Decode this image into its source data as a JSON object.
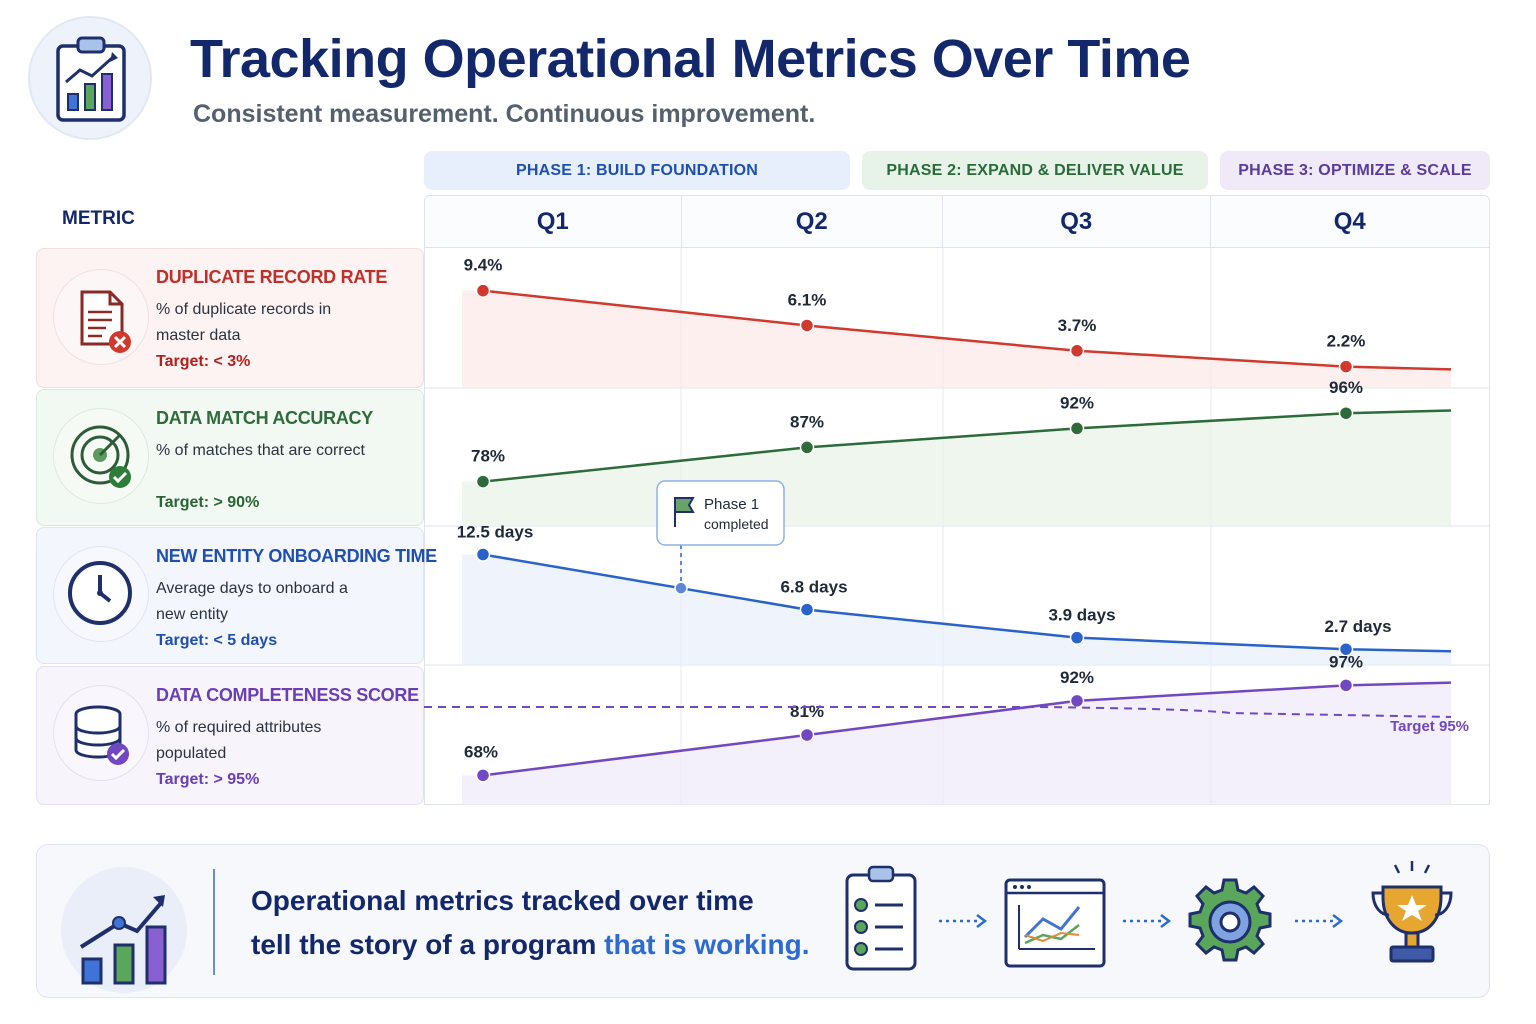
{
  "header": {
    "title": "Tracking Operational Metrics Over Time",
    "subtitle": "Consistent measurement. Continuous improvement.",
    "icon": "clipboard-chart-icon"
  },
  "phases": [
    {
      "label": "PHASE 1: BUILD FOUNDATION",
      "color": "#1f4fb0"
    },
    {
      "label": "PHASE 2: EXPAND & DELIVER VALUE",
      "color": "#2a6b3a"
    },
    {
      "label": "PHASE 3: OPTIMIZE & SCALE",
      "color": "#5a3c9c"
    }
  ],
  "table": {
    "metric_header": "METRIC",
    "quarters": [
      "Q1",
      "Q2",
      "Q3",
      "Q4"
    ]
  },
  "metrics": [
    {
      "name": "DUPLICATE RECORD RATE",
      "description": "% of duplicate records in master data",
      "target": "Target: < 3%",
      "icon": "document-error-icon",
      "color": "#c0302b",
      "bg": "#fdf3f3"
    },
    {
      "name": "DATA MATCH ACCURACY",
      "description": "% of matches that are correct",
      "target": "Target: > 90%",
      "icon": "target-check-icon",
      "color": "#2f6b3b",
      "bg": "#f2f8f2"
    },
    {
      "name": "NEW ENTITY ONBOARDING TIME",
      "description": "Average days to onboard a new entity",
      "target": "Target: < 5 days",
      "icon": "clock-icon",
      "color": "#1f4fb0",
      "bg": "#f3f6fc"
    },
    {
      "name": "DATA COMPLETENESS SCORE",
      "description": "% of required attributes populated",
      "target": "Target: > 95%",
      "icon": "database-check-icon",
      "color": "#6a3fb5",
      "bg": "#f7f4fc"
    }
  ],
  "chart_data": {
    "type": "line",
    "categories": [
      "Q1",
      "Q2",
      "Q3",
      "Q4"
    ],
    "series": [
      {
        "name": "DUPLICATE RECORD RATE",
        "values": [
          9.4,
          6.1,
          3.7,
          2.2
        ],
        "labels": [
          "9.4%",
          "6.1%",
          "3.7%",
          "2.2%"
        ],
        "color": "#d1392f",
        "fill": "#fbe9e8"
      },
      {
        "name": "DATA MATCH ACCURACY",
        "values": [
          78,
          87,
          92,
          96
        ],
        "labels": [
          "78%",
          "87%",
          "92%",
          "96%"
        ],
        "color": "#2e6b3a",
        "fill": "#e8f3e8"
      },
      {
        "name": "NEW ENTITY ONBOARDING TIME",
        "values": [
          12.5,
          6.8,
          3.9,
          2.7
        ],
        "labels": [
          "12.5 days",
          "6.8 days",
          "3.9 days",
          "2.7 days"
        ],
        "color": "#2a62cc",
        "fill": "#e8effb"
      },
      {
        "name": "DATA COMPLETENESS SCORE",
        "values": [
          68,
          81,
          92,
          97
        ],
        "labels": [
          "68%",
          "81%",
          "92%",
          "97%"
        ],
        "color": "#7148c2",
        "fill": "#efe9f9"
      }
    ],
    "target_line": {
      "series": "DATA COMPLETENESS SCORE",
      "value": 95,
      "label": "Target 95%"
    },
    "annotation": {
      "text_line1": "Phase 1",
      "text_line2": "completed",
      "icon": "flag-icon"
    }
  },
  "footer": {
    "text_line1": "Operational metrics tracked over time",
    "text_line2_a": "tell the story of a program ",
    "text_line2_b": "that is working.",
    "icons": [
      "growth-chart-icon",
      "checklist-icon",
      "dashboard-chart-icon",
      "gear-icon",
      "trophy-icon"
    ]
  }
}
